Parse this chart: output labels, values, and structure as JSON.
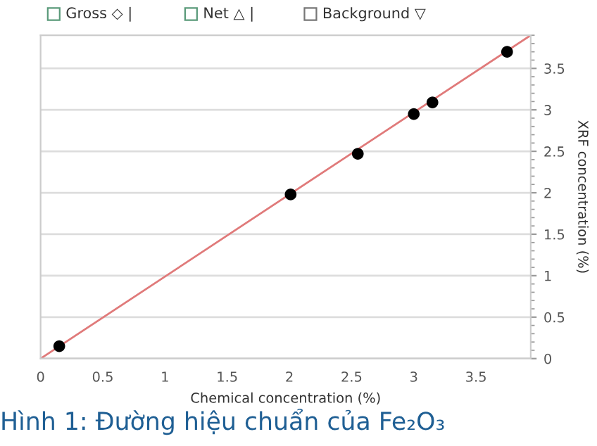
{
  "chart_data": {
    "type": "scatter",
    "title": "Hình 1: Đường hiệu chuẩn của Fe₂O₃",
    "xlabel": "Chemical concentration (%)",
    "ylabel": "XRF concentration (%)",
    "annotations": [
      "Gross ◇ |",
      "Net △ |",
      "Background ▽"
    ],
    "series": [
      {
        "type": "line",
        "marker": "none",
        "color": "#e07a7a",
        "x": [
          0,
          3.94
        ],
        "values": [
          0,
          3.9
        ]
      },
      {
        "marker": "circle",
        "color": "#000000",
        "x": [
          0.15,
          2.01,
          2.55,
          3.0,
          3.15,
          3.75
        ],
        "values": [
          0.15,
          1.98,
          2.47,
          2.95,
          3.09,
          3.7
        ]
      }
    ],
    "xlim": [
      0,
      3.94
    ],
    "ylim": [
      0,
      3.9
    ],
    "xticks": [
      0,
      0.5,
      1,
      1.5,
      2,
      2.5,
      3,
      3.5
    ],
    "yticks": [
      0,
      0.5,
      1,
      1.5,
      2,
      2.5,
      3,
      3.5
    ],
    "grid": "y",
    "line_style": "solid"
  }
}
